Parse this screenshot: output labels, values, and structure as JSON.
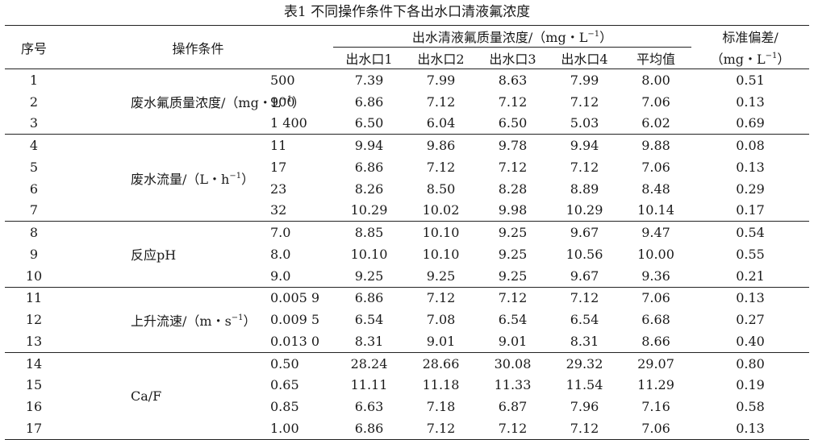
{
  "table": {
    "caption": "表1  不同操作条件下各出水口清液氟浓度",
    "headers": {
      "index": "序号",
      "condition": "操作条件",
      "group": "出水清液氟质量浓度/（mg・L",
      "group_sup": "−1",
      "group_close": "）",
      "outlets": [
        "出水口1",
        "出水口2",
        "出水口3",
        "出水口4",
        "平均值"
      ],
      "std_line1": "标准偏差/",
      "std_line2": "（mg・L",
      "std_sup": "−1",
      "std_close": "）"
    },
    "groups": [
      {
        "label": "废水氟质量浓度/（mg・L",
        "label_sup": "−1",
        "label_close": "）",
        "rows": [
          {
            "no": "1",
            "value": "500",
            "o1": "7.39",
            "o2": "7.99",
            "o3": "8.63",
            "o4": "7.99",
            "avg": "8.00",
            "std": "0.51"
          },
          {
            "no": "2",
            "value": "900",
            "o1": "6.86",
            "o2": "7.12",
            "o3": "7.12",
            "o4": "7.12",
            "avg": "7.06",
            "std": "0.13"
          },
          {
            "no": "3",
            "value": "1 400",
            "o1": "6.50",
            "o2": "6.04",
            "o3": "6.50",
            "o4": "5.03",
            "avg": "6.02",
            "std": "0.69"
          }
        ]
      },
      {
        "label": "废水流量/（L・h",
        "label_sup": "−1",
        "label_close": "）",
        "rows": [
          {
            "no": "4",
            "value": "11",
            "o1": "9.94",
            "o2": "9.86",
            "o3": "9.78",
            "o4": "9.94",
            "avg": "9.88",
            "std": "0.08"
          },
          {
            "no": "5",
            "value": "17",
            "o1": "6.86",
            "o2": "7.12",
            "o3": "7.12",
            "o4": "7.12",
            "avg": "7.06",
            "std": "0.13"
          },
          {
            "no": "6",
            "value": "23",
            "o1": "8.26",
            "o2": "8.50",
            "o3": "8.28",
            "o4": "8.89",
            "avg": "8.48",
            "std": "0.29"
          },
          {
            "no": "7",
            "value": "32",
            "o1": "10.29",
            "o2": "10.02",
            "o3": "9.98",
            "o4": "10.29",
            "avg": "10.14",
            "std": "0.17"
          }
        ]
      },
      {
        "label": "反应pH",
        "label_sup": "",
        "label_close": "",
        "rows": [
          {
            "no": "8",
            "value": "7.0",
            "o1": "8.85",
            "o2": "10.10",
            "o3": "9.25",
            "o4": "9.67",
            "avg": "9.47",
            "std": "0.54"
          },
          {
            "no": "9",
            "value": "8.0",
            "o1": "10.10",
            "o2": "10.10",
            "o3": "9.25",
            "o4": "10.56",
            "avg": "10.00",
            "std": "0.55"
          },
          {
            "no": "10",
            "value": "9.0",
            "o1": "9.25",
            "o2": "9.25",
            "o3": "9.25",
            "o4": "9.67",
            "avg": "9.36",
            "std": "0.21"
          }
        ]
      },
      {
        "label": "上升流速/（m・s",
        "label_sup": "−1",
        "label_close": "）",
        "rows": [
          {
            "no": "11",
            "value": "0.005 9",
            "o1": "6.86",
            "o2": "7.12",
            "o3": "7.12",
            "o4": "7.12",
            "avg": "7.06",
            "std": "0.13"
          },
          {
            "no": "12",
            "value": "0.009 5",
            "o1": "6.54",
            "o2": "7.08",
            "o3": "6.54",
            "o4": "6.54",
            "avg": "6.68",
            "std": "0.27"
          },
          {
            "no": "13",
            "value": "0.013 0",
            "o1": "8.31",
            "o2": "9.01",
            "o3": "9.01",
            "o4": "8.31",
            "avg": "8.66",
            "std": "0.40"
          }
        ]
      },
      {
        "label": "Ca/F",
        "label_sup": "",
        "label_close": "",
        "rows": [
          {
            "no": "14",
            "value": "0.50",
            "o1": "28.24",
            "o2": "28.66",
            "o3": "30.08",
            "o4": "29.32",
            "avg": "29.07",
            "std": "0.80"
          },
          {
            "no": "15",
            "value": "0.65",
            "o1": "11.11",
            "o2": "11.18",
            "o3": "11.33",
            "o4": "11.54",
            "avg": "11.29",
            "std": "0.19"
          },
          {
            "no": "16",
            "value": "0.85",
            "o1": "6.63",
            "o2": "7.18",
            "o3": "6.87",
            "o4": "7.96",
            "avg": "7.16",
            "std": "0.58"
          },
          {
            "no": "17",
            "value": "1.00",
            "o1": "6.86",
            "o2": "7.12",
            "o3": "7.12",
            "o4": "7.12",
            "avg": "7.06",
            "std": "0.13"
          }
        ]
      }
    ]
  }
}
